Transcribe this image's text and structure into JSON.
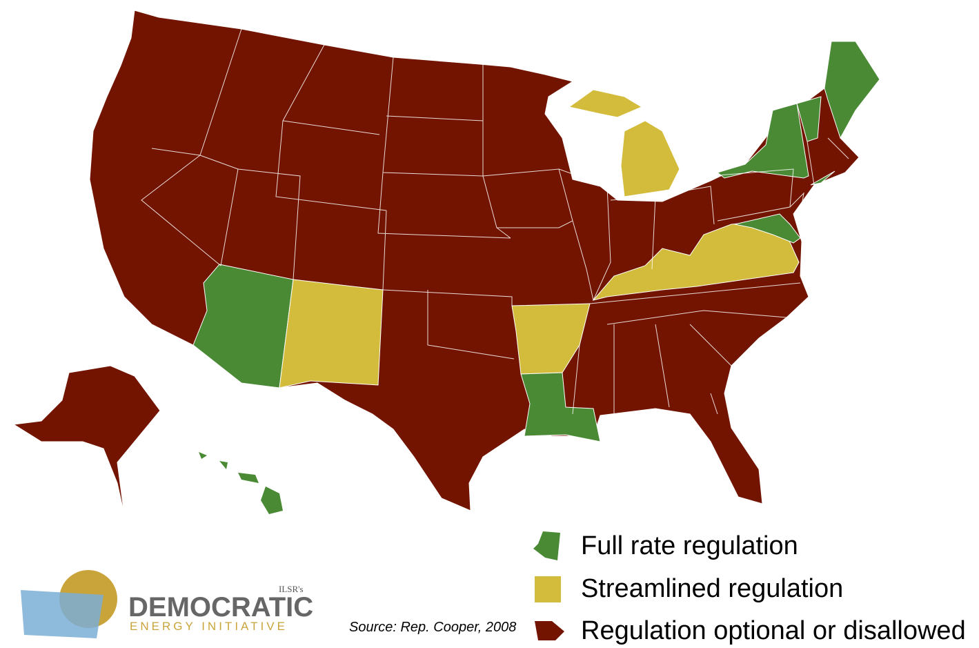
{
  "legend": [
    {
      "label": "Full rate regulation",
      "color": "#4a8a35"
    },
    {
      "label": "Streamlined regulation",
      "color": "#d3bb3c"
    },
    {
      "label": "Regulation optional or disallowed",
      "color": "#721400"
    }
  ],
  "source": "Source: Rep. Cooper, 2008",
  "logo": {
    "badge": "ILSR's",
    "name": "DEMOCRATIC",
    "tagline": "ENERGY INITIATIVE"
  }
}
